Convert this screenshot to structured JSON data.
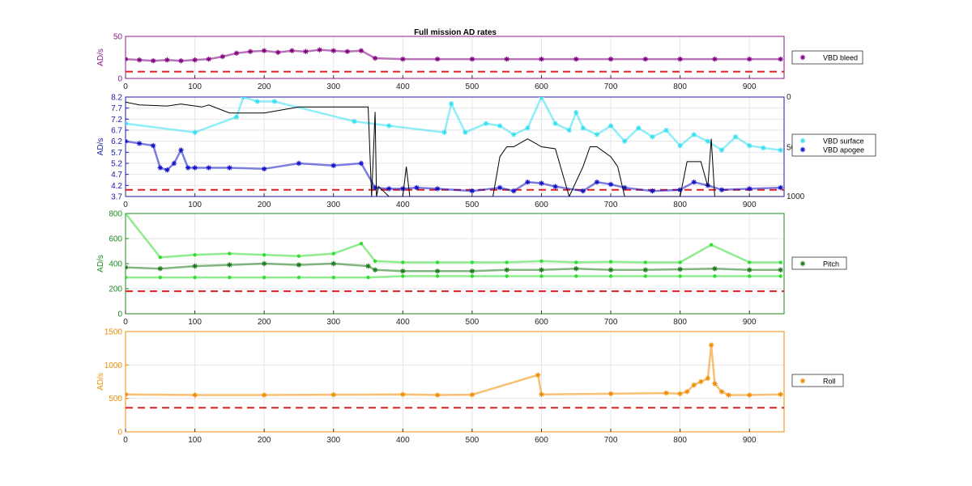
{
  "figure": {
    "title": "Full mission AD rates"
  },
  "chart_data": [
    {
      "type": "scatter",
      "ylabel": "AD/s",
      "xlim": [
        0,
        950
      ],
      "ylim": [
        0,
        50
      ],
      "x_ticks": [
        0,
        100,
        200,
        300,
        400,
        500,
        600,
        700,
        800,
        900
      ],
      "y_ticks": [
        0,
        50
      ],
      "axis_color": "#8b1a8b",
      "grid": true,
      "legend": {
        "position": "outside-right",
        "entries": [
          {
            "label": "VBD bleed",
            "color": "#800080",
            "marker": "star"
          }
        ]
      },
      "series": [
        {
          "name": "VBD bleed",
          "color": "#800080",
          "marker": "star",
          "x": [
            0,
            20,
            40,
            60,
            80,
            100,
            120,
            140,
            160,
            180,
            200,
            220,
            240,
            260,
            280,
            300,
            320,
            340,
            360,
            400,
            450,
            500,
            550,
            600,
            650,
            700,
            750,
            800,
            850,
            900,
            945
          ],
          "y": [
            23,
            22,
            21,
            22,
            21,
            22,
            23,
            26,
            30,
            32,
            33,
            31,
            33,
            32,
            34,
            33,
            32,
            33,
            24,
            23,
            23,
            23,
            23,
            23,
            23,
            23,
            23,
            23,
            23,
            23,
            23
          ]
        }
      ],
      "threshold": {
        "y": 8,
        "color": "#e02020",
        "style": "dashed"
      }
    },
    {
      "type": "scatter",
      "ylabel": "AD/s",
      "xlim": [
        0,
        950
      ],
      "ylim": [
        3.7,
        8.2
      ],
      "x_ticks": [
        0,
        100,
        200,
        300,
        400,
        500,
        600,
        700,
        800,
        900
      ],
      "y_ticks": [
        3.7,
        4.2,
        4.7,
        5.2,
        5.7,
        6.2,
        6.7,
        7.2,
        7.7,
        8.2
      ],
      "y2_ticks": [
        "0",
        "500",
        "1000"
      ],
      "y2_lim": [
        0,
        1000
      ],
      "y2_reversed": true,
      "axis_color": "#1a1aa8",
      "grid": true,
      "legend": {
        "position": "outside-right",
        "entries": [
          {
            "label": "VBD surface",
            "color": "#33e0f0",
            "marker": "star"
          },
          {
            "label": "VBD apogee",
            "color": "#1010c8",
            "marker": "star"
          }
        ]
      },
      "series": [
        {
          "name": "VBD surface",
          "color": "#33e0f0",
          "marker": "star",
          "x": [
            0,
            100,
            160,
            170,
            190,
            215,
            330,
            380,
            460,
            470,
            490,
            520,
            540,
            560,
            580,
            600,
            620,
            640,
            650,
            660,
            680,
            700,
            720,
            740,
            760,
            780,
            800,
            820,
            840,
            860,
            880,
            900,
            920,
            945
          ],
          "y": [
            7.0,
            6.6,
            7.3,
            8.2,
            8.0,
            8.0,
            7.1,
            6.9,
            6.6,
            7.9,
            6.6,
            7.0,
            6.9,
            6.5,
            6.8,
            8.2,
            7.0,
            6.7,
            7.5,
            6.8,
            6.5,
            6.9,
            6.2,
            6.8,
            6.4,
            6.7,
            6.0,
            6.5,
            6.2,
            5.8,
            6.4,
            6.0,
            5.9,
            5.8
          ]
        },
        {
          "name": "VBD apogee",
          "color": "#1010c8",
          "marker": "star",
          "x": [
            0,
            20,
            40,
            50,
            60,
            70,
            80,
            90,
            100,
            120,
            150,
            200,
            250,
            300,
            340,
            360,
            380,
            400,
            420,
            450,
            500,
            540,
            560,
            580,
            600,
            620,
            660,
            680,
            700,
            720,
            760,
            800,
            820,
            840,
            860,
            900,
            945
          ],
          "y": [
            6.2,
            6.1,
            6.0,
            5.0,
            4.9,
            5.2,
            5.8,
            5.0,
            5.0,
            5.0,
            5.0,
            4.95,
            5.2,
            5.1,
            5.2,
            4.1,
            4.05,
            4.05,
            4.1,
            4.05,
            3.95,
            4.1,
            3.95,
            4.35,
            4.3,
            4.15,
            3.95,
            4.35,
            4.25,
            4.1,
            3.95,
            4.0,
            4.35,
            4.2,
            4.0,
            4.05,
            4.1
          ]
        },
        {
          "name": "",
          "color": "#000000",
          "marker": "line",
          "axis": "right",
          "x": [
            0,
            20,
            60,
            80,
            110,
            120,
            150,
            200,
            250,
            300,
            350,
            355,
            360,
            362,
            365,
            380,
            400,
            405,
            410,
            420,
            450,
            500,
            530,
            540,
            550,
            560,
            580,
            600,
            620,
            640,
            660,
            670,
            680,
            700,
            710,
            720,
            800,
            810,
            820,
            830,
            840,
            845,
            850,
            870,
            900,
            945
          ],
          "y": [
            50,
            80,
            90,
            70,
            100,
            80,
            160,
            160,
            100,
            100,
            100,
            1000,
            150,
            1000,
            900,
            1000,
            1000,
            700,
            1000,
            1000,
            1000,
            1000,
            1000,
            600,
            500,
            500,
            420,
            500,
            520,
            1000,
            700,
            500,
            500,
            600,
            700,
            1000,
            1000,
            650,
            650,
            650,
            900,
            420,
            1000,
            1000,
            1000,
            1000
          ]
        }
      ],
      "threshold": {
        "y": 4.0,
        "color": "#e02020",
        "style": "dashed"
      }
    },
    {
      "type": "scatter",
      "ylabel": "AD/s",
      "xlim": [
        0,
        950
      ],
      "ylim": [
        0,
        800
      ],
      "x_ticks": [
        0,
        100,
        200,
        300,
        400,
        500,
        600,
        700,
        800,
        900
      ],
      "y_ticks": [
        0,
        200,
        400,
        600,
        800
      ],
      "axis_color": "#1f8a1f",
      "grid": true,
      "legend": {
        "position": "outside-right",
        "entries": [
          {
            "label": "Pitch",
            "color": "#1a7a1a",
            "marker": "star"
          }
        ]
      },
      "series": [
        {
          "name": "Pitch",
          "color": "#1a7a1a",
          "marker": "star",
          "x": [
            0,
            50,
            100,
            150,
            200,
            250,
            300,
            350,
            360,
            400,
            450,
            500,
            550,
            600,
            650,
            700,
            750,
            800,
            850,
            900,
            945
          ],
          "y": [
            370,
            360,
            380,
            390,
            400,
            390,
            400,
            380,
            350,
            340,
            340,
            340,
            350,
            350,
            360,
            350,
            350,
            355,
            360,
            350,
            350
          ]
        },
        {
          "name": "",
          "color": "#33dd33",
          "marker": "dot",
          "x": [
            0,
            50,
            100,
            150,
            200,
            250,
            300,
            340,
            360,
            400,
            450,
            500,
            550,
            600,
            650,
            700,
            750,
            800,
            845,
            900,
            945
          ],
          "y": [
            800,
            450,
            470,
            480,
            470,
            460,
            480,
            560,
            420,
            410,
            410,
            410,
            410,
            420,
            410,
            415,
            410,
            410,
            550,
            410,
            410
          ]
        },
        {
          "name": "",
          "color": "#33dd33",
          "marker": "dot",
          "x": [
            0,
            50,
            100,
            150,
            200,
            250,
            300,
            350,
            400,
            450,
            500,
            550,
            600,
            650,
            700,
            750,
            800,
            850,
            900,
            945
          ],
          "y": [
            290,
            290,
            290,
            290,
            290,
            290,
            290,
            290,
            300,
            300,
            300,
            300,
            300,
            300,
            300,
            300,
            300,
            300,
            300,
            300
          ]
        }
      ],
      "threshold": {
        "y": 180,
        "color": "#e02020",
        "style": "dashed"
      }
    },
    {
      "type": "scatter",
      "ylabel": "AD/s",
      "xlim": [
        0,
        950
      ],
      "ylim": [
        0,
        1500
      ],
      "x_ticks": [
        0,
        100,
        200,
        300,
        400,
        500,
        600,
        700,
        800,
        900
      ],
      "y_ticks": [
        0,
        500,
        1000,
        1500
      ],
      "axis_color": "#f08c00",
      "grid": true,
      "legend": {
        "position": "outside-right",
        "entries": [
          {
            "label": "Roll",
            "color": "#f08c00",
            "marker": "star"
          }
        ]
      },
      "series": [
        {
          "name": "Roll",
          "color": "#f08c00",
          "marker": "star",
          "x": [
            0,
            100,
            200,
            300,
            400,
            450,
            500,
            595,
            600,
            700,
            780,
            800,
            810,
            820,
            830,
            840,
            845,
            850,
            860,
            870,
            900,
            945
          ],
          "y": [
            560,
            550,
            550,
            555,
            560,
            550,
            555,
            850,
            560,
            570,
            580,
            570,
            600,
            700,
            750,
            800,
            1300,
            720,
            600,
            550,
            550,
            560
          ]
        }
      ],
      "threshold": {
        "y": 360,
        "color": "#e02020",
        "style": "dashed"
      }
    }
  ]
}
